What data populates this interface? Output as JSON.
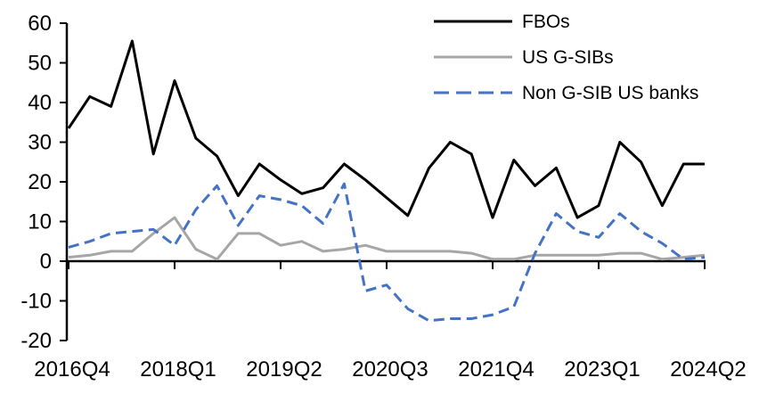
{
  "chart_data": {
    "type": "line",
    "title": "",
    "xlabel": "",
    "ylabel": "",
    "grid": false,
    "legend_position": "top-right",
    "ylim": [
      -20,
      60
    ],
    "y_ticks": [
      60,
      50,
      40,
      30,
      20,
      10,
      0,
      -10,
      -20
    ],
    "x_tick_labels": [
      "2016Q4",
      "2018Q1",
      "2019Q2",
      "2020Q3",
      "2021Q4",
      "2023Q1",
      "2024Q2"
    ],
    "x_tick_every": 5,
    "categories": [
      "2016Q4",
      "2017Q1",
      "2017Q2",
      "2017Q3",
      "2017Q4",
      "2018Q1",
      "2018Q2",
      "2018Q3",
      "2018Q4",
      "2019Q1",
      "2019Q2",
      "2019Q3",
      "2019Q4",
      "2020Q1",
      "2020Q2",
      "2020Q3",
      "2020Q4",
      "2021Q1",
      "2021Q2",
      "2021Q3",
      "2021Q4",
      "2022Q1",
      "2022Q2",
      "2022Q3",
      "2022Q4",
      "2023Q1",
      "2023Q2",
      "2023Q3",
      "2023Q4",
      "2024Q1",
      "2024Q2"
    ],
    "series": [
      {
        "name": "FBOs",
        "slug": "fbos",
        "color": "#000000",
        "style": "solid",
        "values": [
          33.5,
          41.5,
          39,
          55.5,
          27,
          45.5,
          31,
          26.5,
          16.5,
          24.5,
          20.5,
          17,
          18.5,
          24.5,
          20.5,
          16,
          11.5,
          23.5,
          30,
          27,
          11,
          25.5,
          19,
          23.5,
          11,
          14,
          30,
          25,
          14,
          24.5,
          24.5
        ]
      },
      {
        "name": "US G-SIBs",
        "slug": "us-g-sibs",
        "color": "#a6a6a6",
        "style": "solid",
        "values": [
          1,
          1.5,
          2.5,
          2.5,
          7,
          11,
          3,
          0.5,
          7,
          7,
          4,
          5,
          2.5,
          3,
          4,
          2.5,
          2.5,
          2.5,
          2.5,
          2,
          0.5,
          0.5,
          1.5,
          1.5,
          1.5,
          1.5,
          2,
          2,
          0.5,
          1,
          1.5
        ]
      },
      {
        "name": "Non G-SIB US banks",
        "slug": "non-g-sib-us-banks",
        "color": "#4472c4",
        "style": "dashed",
        "values": [
          3.5,
          5,
          7,
          7.5,
          8,
          4,
          13,
          19,
          9,
          16.5,
          15.5,
          14,
          9.5,
          19.5,
          -7.5,
          -6,
          -12,
          -15,
          -14.5,
          -14.5,
          -13.5,
          -11.5,
          2,
          12,
          7.5,
          6,
          12,
          7.5,
          4.5,
          0.5,
          1
        ]
      }
    ],
    "legend": {
      "items": [
        "FBOs",
        "US G-SIBs",
        "Non G-SIB US banks"
      ]
    }
  }
}
